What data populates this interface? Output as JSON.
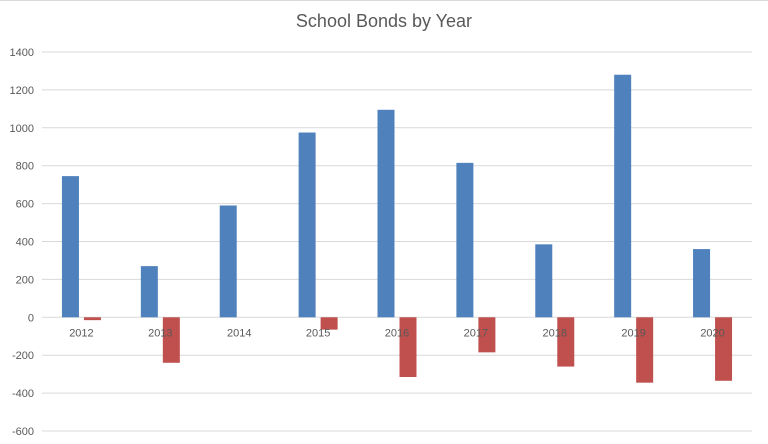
{
  "chart_data": {
    "type": "bar",
    "title": "School Bonds by Year",
    "xlabel": "",
    "ylabel": "",
    "categories": [
      "2012",
      "2013",
      "2014",
      "2015",
      "2016",
      "2017",
      "2018",
      "2019",
      "2020"
    ],
    "series": [
      {
        "color": "#4f81bd",
        "values": [
          745,
          270,
          590,
          975,
          1095,
          815,
          385,
          1280,
          360
        ]
      },
      {
        "color": "#c0504d",
        "values": [
          -15,
          -240,
          0,
          -65,
          -315,
          -185,
          -260,
          -345,
          -335
        ]
      }
    ],
    "ylim": [
      -600,
      1400
    ],
    "yticks": [
      "1400",
      "1200",
      "1000",
      "800",
      "600",
      "400",
      "200",
      "0",
      "-200",
      "-400",
      "-600"
    ],
    "grid": true,
    "legend": "none"
  }
}
